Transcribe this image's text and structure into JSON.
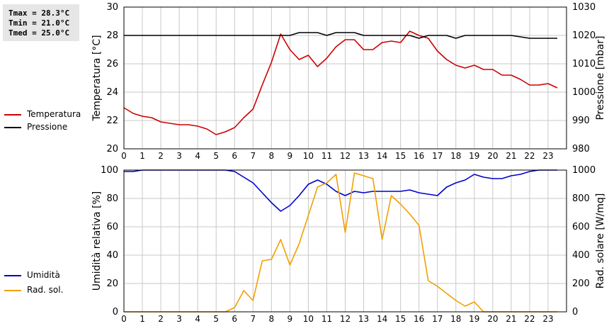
{
  "stats": {
    "tmax": "Tmax = 28.3°C",
    "tmin": "Tmin = 21.0°C",
    "tmed": "Tmed = 25.0°C"
  },
  "legend": {
    "temperatura": "Temperatura",
    "pressione": "Pressione",
    "umidita": "Umidità",
    "rad_sol": "Rad. sol."
  },
  "colors": {
    "temperatura": "#cc0000",
    "pressione": "#000000",
    "umidita": "#0000cc",
    "rad_sol": "#f0a000",
    "grid": "#c8c8c8"
  },
  "chart_data": [
    {
      "type": "line",
      "xlim": [
        0,
        24
      ],
      "x_ticks": [
        "0",
        "1",
        "2",
        "3",
        "4",
        "5",
        "6",
        "7",
        "8",
        "9",
        "10",
        "11",
        "12",
        "13",
        "14",
        "15",
        "16",
        "17",
        "18",
        "19",
        "20",
        "21",
        "22",
        "23"
      ],
      "grid": true,
      "left_axis": {
        "label": "Temperatura [°C]",
        "ylim": [
          20,
          30
        ],
        "ticks": [
          20,
          22,
          24,
          26,
          28,
          30
        ]
      },
      "right_axis": {
        "label": "Pressione [mbar]",
        "ylim": [
          980,
          1030
        ],
        "ticks": [
          980,
          990,
          1000,
          1010,
          1020,
          1030
        ]
      },
      "series": [
        {
          "name": "Temperatura",
          "axis": "left",
          "x": [
            0,
            0.5,
            1,
            1.5,
            2,
            2.5,
            3,
            3.5,
            4,
            4.5,
            5,
            5.5,
            6,
            6.5,
            7,
            7.5,
            8,
            8.5,
            9,
            9.5,
            10,
            10.5,
            11,
            11.5,
            12,
            12.5,
            13,
            13.5,
            14,
            14.5,
            15,
            15.5,
            16,
            16.5,
            17,
            17.5,
            18,
            18.5,
            19,
            19.5,
            20,
            20.5,
            21,
            21.5,
            22,
            22.5,
            23,
            23.5
          ],
          "y": [
            22.9,
            22.5,
            22.3,
            22.2,
            21.9,
            21.8,
            21.7,
            21.7,
            21.6,
            21.4,
            21.0,
            21.2,
            21.5,
            22.2,
            22.8,
            24.5,
            26.1,
            28.1,
            27.0,
            26.3,
            26.6,
            25.8,
            26.4,
            27.2,
            27.7,
            27.7,
            27.0,
            27.0,
            27.5,
            27.6,
            27.5,
            28.3,
            28.0,
            27.8,
            26.9,
            26.3,
            25.9,
            25.7,
            25.9,
            25.6,
            25.6,
            25.2,
            25.2,
            24.9,
            24.5,
            24.5,
            24.6,
            24.3
          ]
        },
        {
          "name": "Pressione",
          "axis": "right",
          "x": [
            0,
            8.5,
            9,
            9.5,
            10,
            10.5,
            11,
            11.5,
            12,
            12.5,
            13,
            13.5,
            14,
            14.5,
            15,
            15.5,
            16,
            16.5,
            17,
            17.5,
            18,
            18.5,
            19,
            21,
            22,
            23.5
          ],
          "y": [
            1020,
            1020,
            1020,
            1021,
            1021,
            1021,
            1020,
            1021,
            1021,
            1021,
            1020,
            1020,
            1020,
            1020,
            1020,
            1020,
            1019,
            1020,
            1020,
            1020,
            1019,
            1020,
            1020,
            1020,
            1019,
            1019
          ]
        }
      ]
    },
    {
      "type": "line",
      "xlim": [
        0,
        24
      ],
      "x_ticks": [
        "0",
        "1",
        "2",
        "3",
        "4",
        "5",
        "6",
        "7",
        "8",
        "9",
        "10",
        "11",
        "12",
        "13",
        "14",
        "15",
        "16",
        "17",
        "18",
        "19",
        "20",
        "21",
        "22",
        "23"
      ],
      "grid": true,
      "left_axis": {
        "label": "Umidità relativa [%]",
        "ylim": [
          0,
          100
        ],
        "ticks": [
          0,
          20,
          40,
          60,
          80,
          100
        ]
      },
      "right_axis": {
        "label": "Rad. solare [W/mq]",
        "ylim": [
          0,
          1000
        ],
        "ticks": [
          0,
          200,
          400,
          600,
          800,
          1000
        ]
      },
      "series": [
        {
          "name": "Umidità",
          "axis": "left",
          "x": [
            0,
            0.5,
            1,
            5.5,
            6,
            6.5,
            7,
            7.5,
            8,
            8.5,
            9,
            9.5,
            10,
            10.5,
            11,
            11.5,
            12,
            12.5,
            13,
            13.5,
            14,
            14.5,
            15,
            15.5,
            16,
            16.5,
            17,
            17.5,
            18,
            18.5,
            19,
            19.5,
            20,
            20.5,
            21,
            21.5,
            22,
            22.5,
            23,
            23.5
          ],
          "y": [
            99,
            99,
            100,
            100,
            99,
            95,
            91,
            84,
            77,
            71,
            75,
            82,
            90,
            93,
            90,
            85,
            82,
            85,
            84,
            85,
            85,
            85,
            85,
            86,
            84,
            83,
            82,
            88,
            91,
            93,
            97,
            95,
            94,
            94,
            96,
            97,
            99,
            100,
            100,
            100
          ]
        },
        {
          "name": "Rad. sol.",
          "axis": "right",
          "x": [
            0,
            5.5,
            6,
            6.5,
            7,
            7.5,
            8,
            8.5,
            9,
            9.5,
            10,
            10.5,
            11,
            11.5,
            12,
            12.5,
            13,
            13.5,
            14,
            14.5,
            15,
            15.5,
            16,
            16.5,
            17,
            17.5,
            18,
            18.5,
            19,
            19.5,
            20,
            20.5,
            21,
            23.5
          ],
          "y": [
            0,
            0,
            30,
            150,
            80,
            360,
            370,
            510,
            330,
            480,
            680,
            880,
            910,
            970,
            560,
            980,
            960,
            940,
            510,
            820,
            760,
            690,
            610,
            220,
            180,
            130,
            80,
            40,
            70,
            0,
            0,
            0,
            0,
            0
          ]
        }
      ]
    }
  ]
}
